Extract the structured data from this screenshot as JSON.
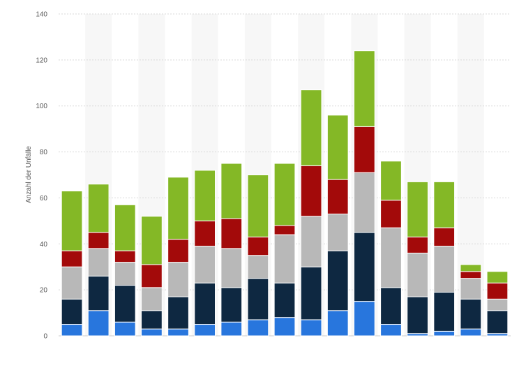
{
  "chart_data": {
    "type": "bar",
    "stacked": true,
    "title": "",
    "xlabel": "",
    "ylabel": "Anzahl der Unfälle",
    "ylim": [
      0,
      140
    ],
    "yticks": [
      0,
      20,
      40,
      60,
      80,
      100,
      120,
      140
    ],
    "grid": true,
    "legend": "none",
    "categories": [
      "",
      "",
      "",
      "",
      "",
      "",
      "",
      "",
      "",
      "",
      "",
      "",
      "",
      "",
      "",
      "",
      ""
    ],
    "series": [
      {
        "color": "#2876dd",
        "values": [
          5,
          11,
          6,
          3,
          3,
          5,
          6,
          7,
          8,
          7,
          11,
          15,
          5,
          1,
          2,
          3,
          1
        ]
      },
      {
        "color": "#0e2841",
        "values": [
          11,
          15,
          16,
          8,
          14,
          18,
          15,
          18,
          15,
          23,
          26,
          30,
          16,
          16,
          17,
          13,
          10
        ]
      },
      {
        "color": "#b8b8b8",
        "values": [
          14,
          12,
          10,
          10,
          15,
          16,
          17,
          10,
          21,
          22,
          16,
          26,
          26,
          19,
          20,
          9,
          5
        ]
      },
      {
        "color": "#a30a0a",
        "values": [
          7,
          7,
          5,
          10,
          10,
          11,
          13,
          8,
          4,
          22,
          15,
          20,
          12,
          7,
          8,
          3,
          7
        ]
      },
      {
        "color": "#84b826",
        "values": [
          26,
          21,
          20,
          21,
          27,
          22,
          24,
          27,
          27,
          33,
          28,
          33,
          17,
          24,
          20,
          3,
          5
        ]
      }
    ]
  }
}
